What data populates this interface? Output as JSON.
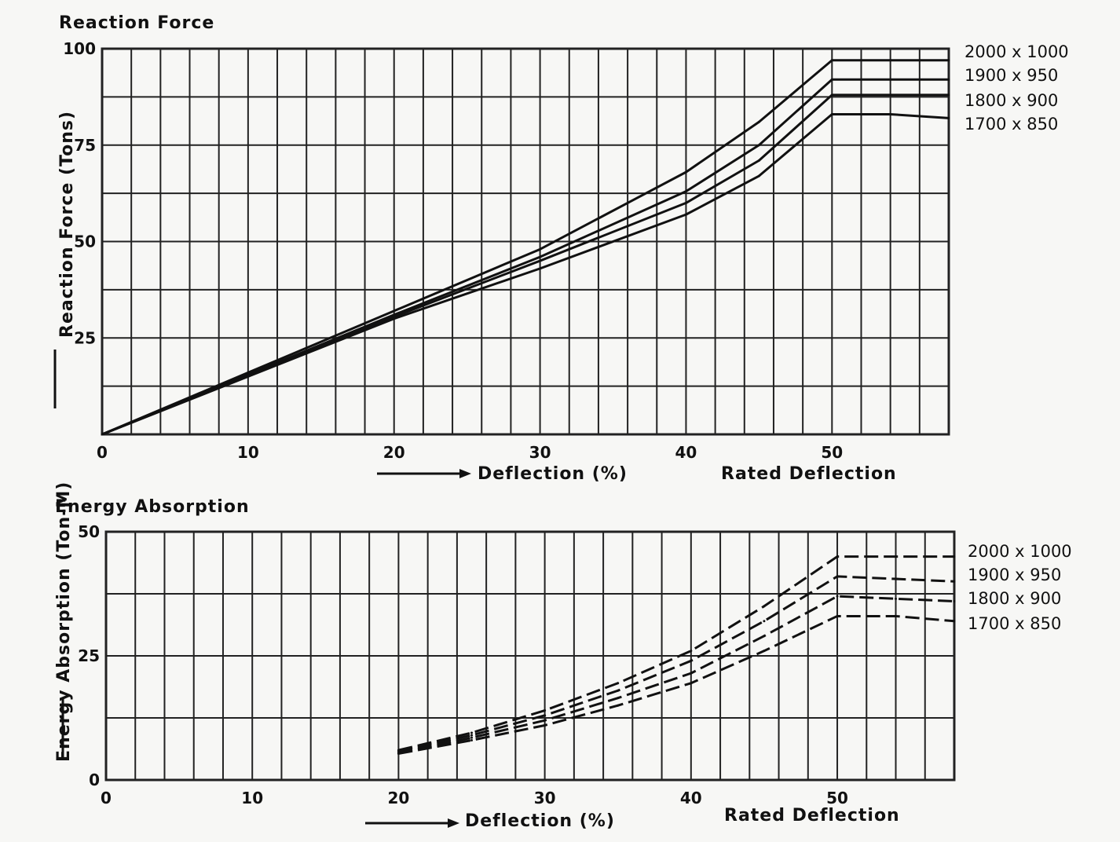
{
  "chart_data": [
    {
      "type": "line",
      "title": "Reaction Force",
      "ylabel": "Reaction Force (Tons)",
      "xlabel": "Deflection (%)",
      "x_annotation": "Rated Deflection",
      "xlim": [
        0,
        58
      ],
      "ylim": [
        0,
        100
      ],
      "x_ticks": [
        {
          "value": 0,
          "label": "0"
        },
        {
          "value": 10,
          "label": "10"
        },
        {
          "value": 20,
          "label": "20"
        },
        {
          "value": 30,
          "label": "30"
        },
        {
          "value": 40,
          "label": "40"
        },
        {
          "value": 50,
          "label": "50"
        }
      ],
      "y_ticks": [
        {
          "value": 0,
          "label": ""
        },
        {
          "value": 25,
          "label": "25"
        },
        {
          "value": 50,
          "label": "50"
        },
        {
          "value": 75,
          "label": "75"
        },
        {
          "value": 100,
          "label": "100"
        }
      ],
      "grid": true,
      "legend_position": "right",
      "series": [
        {
          "name": "2000 x 1000",
          "style": "solid",
          "x": [
            0,
            10,
            20,
            30,
            40,
            45,
            50,
            54,
            58
          ],
          "y": [
            0,
            16,
            32,
            48,
            68,
            81,
            97,
            97,
            97
          ]
        },
        {
          "name": "1900 x 950",
          "style": "solid",
          "x": [
            0,
            10,
            20,
            30,
            40,
            45,
            50,
            54,
            58
          ],
          "y": [
            0,
            15.5,
            31,
            46,
            63,
            75,
            92,
            92,
            92
          ]
        },
        {
          "name": "1800 x 900",
          "style": "solid",
          "x": [
            0,
            10,
            20,
            30,
            40,
            45,
            50,
            54,
            58
          ],
          "y": [
            0,
            15.2,
            30.5,
            45,
            60,
            71,
            88,
            88,
            88
          ]
        },
        {
          "name": "1700 x 850",
          "style": "solid",
          "x": [
            0,
            10,
            20,
            30,
            40,
            45,
            50,
            54,
            58
          ],
          "y": [
            0,
            15,
            30,
            43,
            57,
            67,
            83,
            83,
            82
          ]
        }
      ]
    },
    {
      "type": "line",
      "title": "Energy Absorption",
      "ylabel": "Energy Absorption (Ton-M)",
      "xlabel": "Deflection (%)",
      "x_annotation": "Rated Deflection",
      "xlim": [
        0,
        58
      ],
      "ylim": [
        0,
        50
      ],
      "x_ticks": [
        {
          "value": 0,
          "label": "0"
        },
        {
          "value": 10,
          "label": "10"
        },
        {
          "value": 20,
          "label": "20"
        },
        {
          "value": 30,
          "label": "30"
        },
        {
          "value": 40,
          "label": "40"
        },
        {
          "value": 50,
          "label": "50"
        }
      ],
      "y_ticks": [
        {
          "value": 0,
          "label": "0"
        },
        {
          "value": 12.5,
          "label": ""
        },
        {
          "value": 25,
          "label": "25"
        },
        {
          "value": 37.5,
          "label": ""
        },
        {
          "value": 50,
          "label": "50"
        }
      ],
      "grid": true,
      "legend_position": "right",
      "series": [
        {
          "name": "2000 x 1000",
          "style": "dashed",
          "x": [
            20,
            25,
            30,
            35,
            40,
            45,
            50,
            54,
            58
          ],
          "y": [
            6,
            9.5,
            14,
            19.5,
            26,
            35,
            45,
            45,
            45
          ]
        },
        {
          "name": "1900 x 950",
          "style": "dashed",
          "x": [
            20,
            25,
            30,
            35,
            40,
            45,
            50,
            54,
            58
          ],
          "y": [
            5.8,
            9,
            13,
            18,
            24,
            32,
            41,
            40.5,
            40
          ]
        },
        {
          "name": "1800 x 900",
          "style": "dashed",
          "x": [
            20,
            25,
            30,
            35,
            40,
            45,
            50,
            54,
            58
          ],
          "y": [
            5.5,
            8.5,
            12,
            16.5,
            21.5,
            29,
            37,
            36.5,
            36
          ]
        },
        {
          "name": "1700 x 850",
          "style": "dashed",
          "x": [
            20,
            25,
            30,
            35,
            40,
            45,
            50,
            54,
            58
          ],
          "y": [
            5.3,
            8,
            11,
            15,
            19.5,
            26,
            33,
            33,
            32
          ]
        }
      ]
    }
  ]
}
